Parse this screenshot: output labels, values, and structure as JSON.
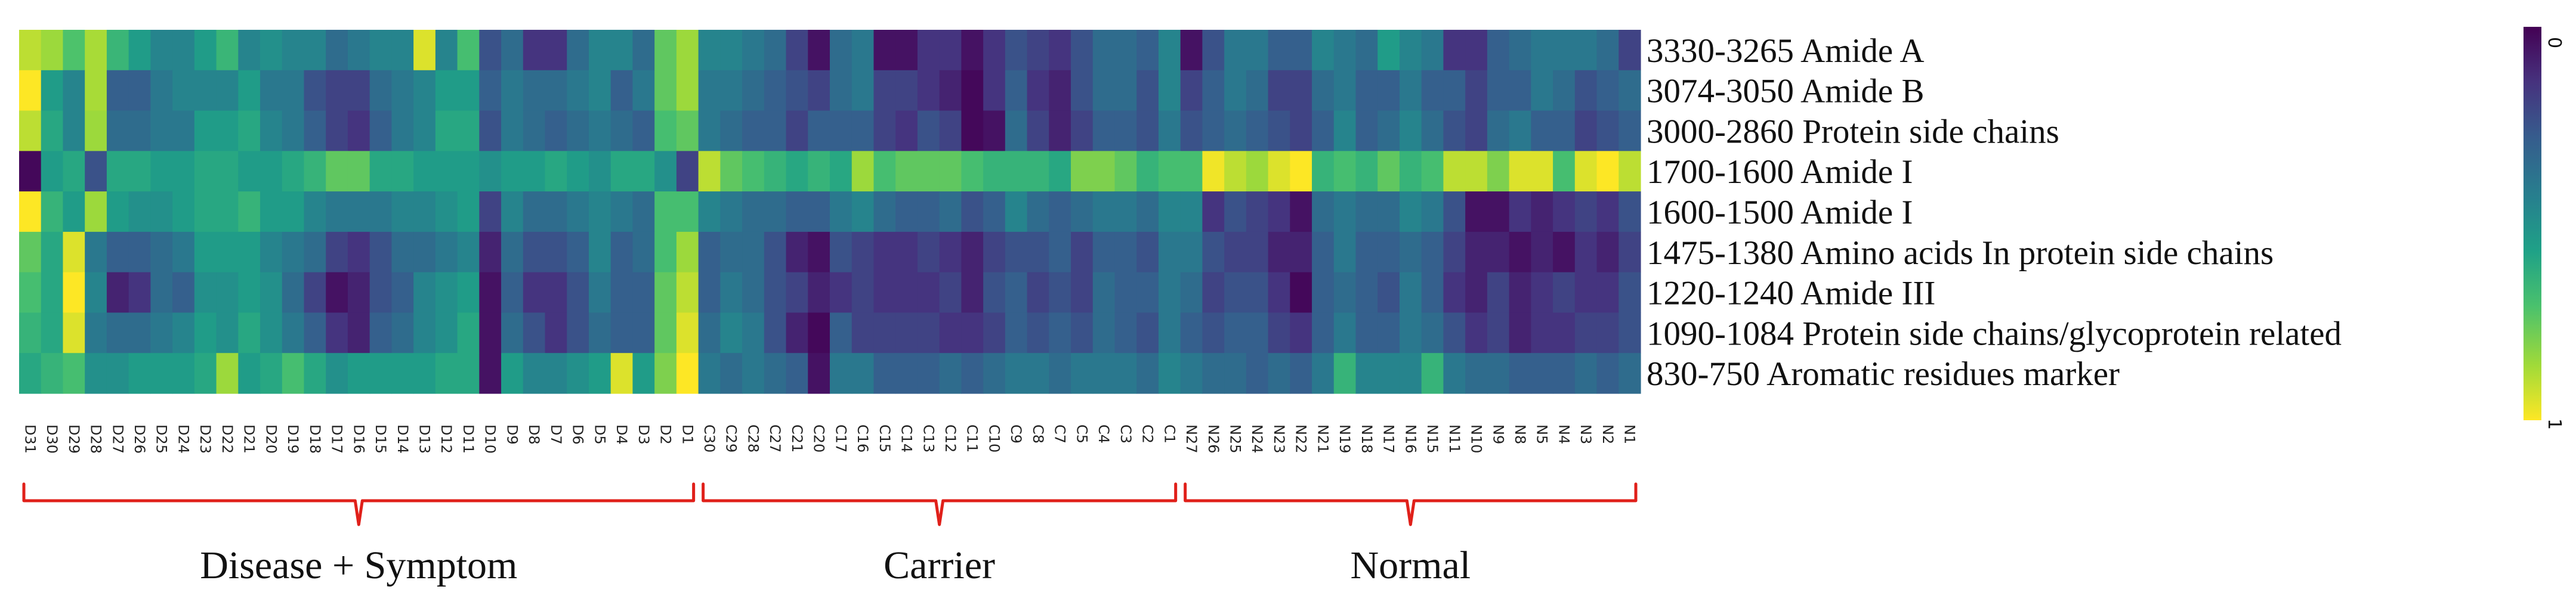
{
  "chart_data": {
    "type": "heatmap",
    "title": "",
    "rows": [
      "3330-3265 Amide A",
      "3074-3050 Amide B",
      "3000-2860 Protein side chains",
      "1700-1600 Amide I",
      "1600-1500 Amide I",
      "1475-1380 Amino acids In protein side chains",
      "1220-1240 Amide III",
      "1090-1084 Protein side chains/glycoprotein related",
      "830-750 Aromatic residues marker"
    ],
    "columns": [
      "D31",
      "D30",
      "D29",
      "D28",
      "D27",
      "D26",
      "D25",
      "D24",
      "D23",
      "D22",
      "D21",
      "D20",
      "D19",
      "D18",
      "D17",
      "D16",
      "D15",
      "D14",
      "D13",
      "D12",
      "D11",
      "D10",
      "D9",
      "D8",
      "D7",
      "D6",
      "D5",
      "D4",
      "D3",
      "D2",
      "D1",
      "C30",
      "C29",
      "C28",
      "C27",
      "C21",
      "C20",
      "C17",
      "C16",
      "C15",
      "C14",
      "C13",
      "C12",
      "C11",
      "C10",
      "C9",
      "C8",
      "C7",
      "C5",
      "C4",
      "C3",
      "C2",
      "C1",
      "N27",
      "N26",
      "N25",
      "N24",
      "N23",
      "N22",
      "N21",
      "N19",
      "N18",
      "N17",
      "N16",
      "N15",
      "N11",
      "N10",
      "N9",
      "N8",
      "N5",
      "N4",
      "N3",
      "N2",
      "N1"
    ],
    "groups": [
      {
        "label": "Disease + Symptom",
        "first": "D31",
        "last": "D1"
      },
      {
        "label": "Carrier",
        "first": "C30",
        "last": "C1"
      },
      {
        "label": "Normal",
        "first": "N27",
        "last": "N1"
      }
    ],
    "colorbar": {
      "colormap": "viridis_r",
      "min": 0,
      "max": 1,
      "top_label": "0",
      "bottom_label": "1",
      "colors_top_to_bottom": [
        "#440154",
        "#46327e",
        "#365c8d",
        "#277f8e",
        "#1fa187",
        "#4ac16d",
        "#a0da39",
        "#fde725"
      ]
    },
    "values": [
      [
        0.9,
        0.85,
        0.72,
        0.87,
        0.66,
        0.55,
        0.45,
        0.45,
        0.55,
        0.66,
        0.45,
        0.5,
        0.45,
        0.45,
        0.35,
        0.4,
        0.45,
        0.45,
        0.95,
        0.45,
        0.7,
        0.25,
        0.35,
        0.15,
        0.15,
        0.35,
        0.45,
        0.45,
        0.35,
        0.75,
        0.85,
        0.45,
        0.45,
        0.4,
        0.35,
        0.2,
        0.05,
        0.35,
        0.4,
        0.05,
        0.05,
        0.15,
        0.15,
        0.05,
        0.15,
        0.25,
        0.2,
        0.15,
        0.25,
        0.35,
        0.35,
        0.3,
        0.45,
        0.05,
        0.25,
        0.4,
        0.4,
        0.3,
        0.3,
        0.45,
        0.4,
        0.35,
        0.55,
        0.45,
        0.4,
        0.15,
        0.15,
        0.3,
        0.35,
        0.4,
        0.4,
        0.4,
        0.35,
        0.2
      ],
      [
        1.0,
        0.55,
        0.45,
        0.87,
        0.3,
        0.3,
        0.4,
        0.45,
        0.45,
        0.45,
        0.55,
        0.4,
        0.4,
        0.25,
        0.2,
        0.2,
        0.35,
        0.4,
        0.45,
        0.55,
        0.55,
        0.3,
        0.4,
        0.35,
        0.35,
        0.4,
        0.45,
        0.3,
        0.4,
        0.75,
        0.85,
        0.4,
        0.4,
        0.35,
        0.3,
        0.25,
        0.2,
        0.35,
        0.4,
        0.2,
        0.2,
        0.15,
        0.1,
        0.02,
        0.15,
        0.3,
        0.15,
        0.1,
        0.25,
        0.35,
        0.35,
        0.25,
        0.45,
        0.2,
        0.3,
        0.4,
        0.35,
        0.2,
        0.2,
        0.35,
        0.4,
        0.3,
        0.3,
        0.4,
        0.3,
        0.3,
        0.2,
        0.3,
        0.3,
        0.4,
        0.35,
        0.25,
        0.3,
        0.35
      ],
      [
        0.9,
        0.6,
        0.45,
        0.85,
        0.35,
        0.35,
        0.4,
        0.4,
        0.55,
        0.55,
        0.6,
        0.45,
        0.4,
        0.3,
        0.2,
        0.15,
        0.3,
        0.4,
        0.45,
        0.6,
        0.6,
        0.25,
        0.4,
        0.35,
        0.3,
        0.35,
        0.4,
        0.35,
        0.3,
        0.7,
        0.75,
        0.4,
        0.35,
        0.3,
        0.3,
        0.2,
        0.3,
        0.3,
        0.3,
        0.2,
        0.15,
        0.25,
        0.2,
        0.02,
        0.05,
        0.35,
        0.2,
        0.1,
        0.2,
        0.3,
        0.3,
        0.25,
        0.4,
        0.25,
        0.3,
        0.35,
        0.3,
        0.25,
        0.2,
        0.3,
        0.45,
        0.3,
        0.35,
        0.45,
        0.35,
        0.25,
        0.2,
        0.35,
        0.4,
        0.3,
        0.3,
        0.2,
        0.25,
        0.3
      ],
      [
        0.02,
        0.55,
        0.6,
        0.25,
        0.6,
        0.6,
        0.55,
        0.55,
        0.6,
        0.6,
        0.55,
        0.55,
        0.6,
        0.65,
        0.75,
        0.75,
        0.6,
        0.6,
        0.55,
        0.55,
        0.55,
        0.5,
        0.55,
        0.55,
        0.6,
        0.55,
        0.5,
        0.6,
        0.6,
        0.5,
        0.2,
        0.9,
        0.75,
        0.7,
        0.65,
        0.6,
        0.65,
        0.6,
        0.85,
        0.7,
        0.75,
        0.75,
        0.75,
        0.7,
        0.65,
        0.65,
        0.65,
        0.6,
        0.8,
        0.8,
        0.75,
        0.65,
        0.7,
        0.7,
        0.98,
        0.9,
        0.85,
        0.95,
        1.0,
        0.65,
        0.7,
        0.65,
        0.75,
        0.65,
        0.7,
        0.9,
        0.9,
        0.8,
        0.95,
        0.95,
        0.7,
        0.95,
        1.0,
        0.9
      ],
      [
        1.0,
        0.65,
        0.55,
        0.85,
        0.55,
        0.5,
        0.5,
        0.55,
        0.6,
        0.6,
        0.65,
        0.55,
        0.55,
        0.45,
        0.4,
        0.4,
        0.4,
        0.45,
        0.45,
        0.5,
        0.55,
        0.2,
        0.45,
        0.35,
        0.35,
        0.4,
        0.45,
        0.4,
        0.35,
        0.7,
        0.7,
        0.45,
        0.4,
        0.35,
        0.35,
        0.3,
        0.3,
        0.4,
        0.45,
        0.35,
        0.3,
        0.3,
        0.35,
        0.25,
        0.3,
        0.45,
        0.35,
        0.3,
        0.35,
        0.4,
        0.4,
        0.35,
        0.45,
        0.45,
        0.15,
        0.25,
        0.2,
        0.15,
        0.05,
        0.35,
        0.4,
        0.35,
        0.35,
        0.45,
        0.4,
        0.25,
        0.05,
        0.05,
        0.15,
        0.1,
        0.15,
        0.2,
        0.15,
        0.25
      ],
      [
        0.75,
        0.6,
        0.95,
        0.4,
        0.3,
        0.3,
        0.35,
        0.4,
        0.55,
        0.55,
        0.55,
        0.45,
        0.4,
        0.35,
        0.2,
        0.15,
        0.25,
        0.35,
        0.35,
        0.4,
        0.45,
        0.1,
        0.35,
        0.25,
        0.25,
        0.3,
        0.45,
        0.3,
        0.35,
        0.7,
        0.85,
        0.3,
        0.35,
        0.35,
        0.25,
        0.1,
        0.05,
        0.25,
        0.2,
        0.15,
        0.15,
        0.2,
        0.15,
        0.1,
        0.2,
        0.25,
        0.25,
        0.3,
        0.2,
        0.3,
        0.3,
        0.25,
        0.4,
        0.4,
        0.25,
        0.2,
        0.2,
        0.1,
        0.1,
        0.3,
        0.4,
        0.3,
        0.3,
        0.35,
        0.3,
        0.2,
        0.1,
        0.1,
        0.05,
        0.1,
        0.05,
        0.15,
        0.1,
        0.2
      ],
      [
        0.7,
        0.6,
        1.0,
        0.45,
        0.1,
        0.15,
        0.35,
        0.3,
        0.5,
        0.5,
        0.55,
        0.5,
        0.35,
        0.2,
        0.05,
        0.1,
        0.25,
        0.3,
        0.45,
        0.5,
        0.55,
        0.05,
        0.3,
        0.15,
        0.15,
        0.25,
        0.4,
        0.3,
        0.3,
        0.75,
        0.9,
        0.3,
        0.4,
        0.35,
        0.25,
        0.2,
        0.1,
        0.15,
        0.2,
        0.15,
        0.15,
        0.15,
        0.2,
        0.1,
        0.25,
        0.3,
        0.2,
        0.25,
        0.2,
        0.35,
        0.3,
        0.3,
        0.4,
        0.35,
        0.2,
        0.25,
        0.25,
        0.15,
        0.02,
        0.3,
        0.35,
        0.3,
        0.25,
        0.4,
        0.3,
        0.15,
        0.1,
        0.2,
        0.1,
        0.15,
        0.2,
        0.15,
        0.15,
        0.25
      ],
      [
        0.65,
        0.6,
        0.95,
        0.4,
        0.35,
        0.35,
        0.4,
        0.45,
        0.55,
        0.5,
        0.6,
        0.5,
        0.4,
        0.3,
        0.15,
        0.1,
        0.3,
        0.35,
        0.45,
        0.5,
        0.6,
        0.05,
        0.35,
        0.25,
        0.15,
        0.25,
        0.35,
        0.3,
        0.3,
        0.75,
        0.95,
        0.35,
        0.45,
        0.4,
        0.25,
        0.1,
        0.02,
        0.3,
        0.2,
        0.2,
        0.2,
        0.2,
        0.15,
        0.15,
        0.2,
        0.3,
        0.25,
        0.3,
        0.25,
        0.35,
        0.3,
        0.25,
        0.4,
        0.3,
        0.25,
        0.3,
        0.3,
        0.2,
        0.15,
        0.3,
        0.4,
        0.3,
        0.3,
        0.4,
        0.35,
        0.25,
        0.15,
        0.2,
        0.1,
        0.15,
        0.15,
        0.2,
        0.2,
        0.25
      ],
      [
        0.6,
        0.65,
        0.7,
        0.5,
        0.5,
        0.55,
        0.55,
        0.55,
        0.6,
        0.85,
        0.55,
        0.6,
        0.7,
        0.6,
        0.5,
        0.55,
        0.55,
        0.55,
        0.55,
        0.6,
        0.6,
        0.05,
        0.55,
        0.45,
        0.45,
        0.5,
        0.55,
        0.95,
        0.55,
        0.8,
        1.0,
        0.4,
        0.35,
        0.4,
        0.35,
        0.3,
        0.05,
        0.4,
        0.4,
        0.3,
        0.3,
        0.3,
        0.35,
        0.3,
        0.35,
        0.4,
        0.4,
        0.35,
        0.4,
        0.4,
        0.4,
        0.35,
        0.45,
        0.4,
        0.35,
        0.35,
        0.3,
        0.35,
        0.3,
        0.4,
        0.65,
        0.45,
        0.45,
        0.45,
        0.65,
        0.4,
        0.35,
        0.35,
        0.3,
        0.3,
        0.3,
        0.35,
        0.3,
        0.35
      ]
    ]
  }
}
